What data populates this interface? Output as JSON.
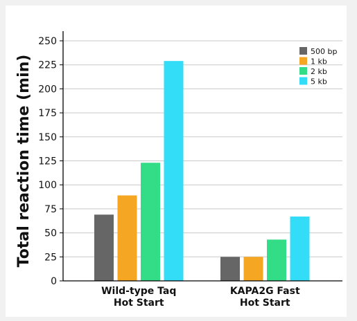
{
  "chart_data": {
    "type": "bar",
    "ylabel": "Total reaction time (min)",
    "ylim": [
      0,
      250
    ],
    "yticks": [
      0,
      25,
      50,
      75,
      100,
      125,
      150,
      175,
      200,
      225,
      250
    ],
    "grid": true,
    "legend_position": "top-right",
    "categories": [
      [
        "Wild-type Taq",
        "Hot Start"
      ],
      [
        "KAPA2G Fast",
        "Hot Start"
      ]
    ],
    "series": [
      {
        "name": "500 bp",
        "color": "#666666",
        "values": [
          69,
          25
        ]
      },
      {
        "name": "1 kb",
        "color": "#f5a623",
        "values": [
          89,
          25
        ]
      },
      {
        "name": "2 kb",
        "color": "#33dd88",
        "values": [
          123,
          43
        ]
      },
      {
        "name": "5 kb",
        "color": "#33ddf7",
        "values": [
          229,
          67
        ]
      }
    ]
  }
}
